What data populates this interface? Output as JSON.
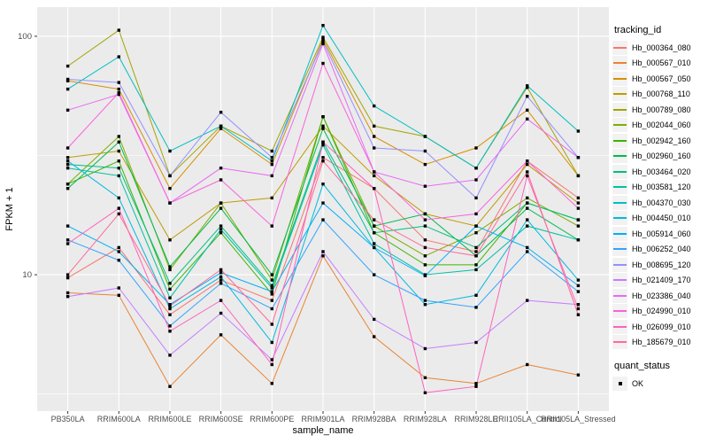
{
  "style": {
    "panel_bg": "#EBEBEB",
    "grid_major": "#FFFFFF",
    "grid_minor": "#FFFFFF",
    "tick_color": "#333333",
    "tick_label_color": "#4D4D4D",
    "axis_title_color": "#000000",
    "point_color": "#000000"
  },
  "legend": {
    "tracking_id_title": "tracking_id",
    "quant_status_title": "quant_status",
    "quant_status_items": [
      "OK"
    ]
  },
  "chart_data": {
    "type": "line",
    "title": "",
    "xlabel": "sample_name",
    "ylabel": "FPKM + 1",
    "y_scale": "log10",
    "y_ticks": [
      100,
      10
    ],
    "y_minor_ticks": [
      31.62,
      3.162
    ],
    "grid": true,
    "legend_position": "right",
    "point_shape": "filled-black-square (quant_status OK)",
    "categories": [
      "PB350LA",
      "RRIM600LA",
      "RRIM600LE",
      "RRIM600SE",
      "RRIM600PE",
      "RRIM901LA",
      "RRIM928BA",
      "RRIM928LA",
      "RRIM928LE",
      "RRII105LA_Control",
      "RRII105LA_Stressed"
    ],
    "series": [
      {
        "name": "Hb_000364_080",
        "color": "#F8766D",
        "values": [
          9.7,
          13,
          6.8,
          9.5,
          7.8,
          31,
          23,
          14,
          12.5,
          30,
          21
        ]
      },
      {
        "name": "Hb_000567_010",
        "color": "#EA8331",
        "values": [
          8.4,
          8.2,
          3.4,
          5.6,
          3.5,
          12,
          5.5,
          3.7,
          3.5,
          4.2,
          3.8
        ]
      },
      {
        "name": "Hb_000567_050",
        "color": "#D89000",
        "values": [
          65,
          60,
          23,
          41,
          29,
          97,
          38,
          29,
          34,
          49,
          26
        ]
      },
      {
        "name": "Hb_000768_110",
        "color": "#C09B00",
        "values": [
          31,
          33,
          14,
          20,
          21,
          42,
          26,
          18,
          16,
          29,
          20
        ]
      },
      {
        "name": "Hb_000789_080",
        "color": "#A3A500",
        "values": [
          75,
          106,
          26,
          42,
          33,
          99,
          42,
          38,
          28,
          61,
          26
        ]
      },
      {
        "name": "Hb_002044_060",
        "color": "#7CAE00",
        "values": [
          24,
          38,
          10.5,
          20,
          9.5,
          46,
          16,
          12,
          15,
          21,
          16
        ]
      },
      {
        "name": "Hb_002942_160",
        "color": "#39B600",
        "values": [
          24,
          30,
          8.7,
          15,
          8.3,
          46,
          15,
          11,
          11,
          20,
          17
        ]
      },
      {
        "name": "Hb_002960_160",
        "color": "#00BB4E",
        "values": [
          23,
          36,
          10.8,
          19,
          10,
          41,
          16,
          18,
          12,
          19,
          14
        ]
      },
      {
        "name": "Hb_003464_020",
        "color": "#00BF7D",
        "values": [
          29,
          28,
          9.2,
          16,
          9,
          36,
          15,
          16,
          13,
          20,
          17
        ]
      },
      {
        "name": "Hb_003581_120",
        "color": "#00C1A3",
        "values": [
          28,
          26,
          8,
          15.5,
          8.8,
          35,
          13.5,
          10,
          10.5,
          16,
          14
        ]
      },
      {
        "name": "Hb_004370_030",
        "color": "#00BFC4",
        "values": [
          60,
          82,
          33,
          42,
          30,
          111,
          51,
          38,
          28,
          62,
          40
        ]
      },
      {
        "name": "Hb_004450_010",
        "color": "#00BAE0",
        "values": [
          30,
          21,
          7.2,
          9.8,
          5.2,
          24,
          13,
          7.5,
          8.2,
          17,
          9.5
        ]
      },
      {
        "name": "Hb_005914_060",
        "color": "#00B0F6",
        "values": [
          16,
          12.5,
          7.5,
          10.2,
          8.5,
          20,
          13,
          9.9,
          16,
          13,
          9
        ]
      },
      {
        "name": "Hb_006252_040",
        "color": "#35A2FF",
        "values": [
          14,
          11.5,
          6.1,
          9.2,
          7.2,
          17,
          10,
          7.8,
          7.3,
          12.5,
          8.5
        ]
      },
      {
        "name": "Hb_008695_120",
        "color": "#9590FF",
        "values": [
          66,
          64,
          26,
          48,
          31,
          95,
          34,
          33,
          21,
          56,
          31
        ]
      },
      {
        "name": "Hb_021409_170",
        "color": "#C77CFF",
        "values": [
          8.1,
          8.8,
          4.6,
          6.9,
          4.4,
          12.5,
          6.5,
          4.9,
          5.2,
          7.8,
          7.5
        ]
      },
      {
        "name": "Hb_023386_040",
        "color": "#E76BF3",
        "values": [
          49,
          57,
          20,
          28,
          26,
          93,
          27,
          23.5,
          25,
          45,
          31
        ]
      },
      {
        "name": "Hb_024990_010",
        "color": "#FA62DB",
        "values": [
          34,
          58,
          20,
          25,
          16,
          77,
          27,
          17,
          18,
          30,
          19
        ]
      },
      {
        "name": "Hb_026099_010",
        "color": "#FF62BC",
        "values": [
          13.5,
          19,
          5.8,
          7.8,
          4.2,
          36,
          23,
          3.2,
          3.4,
          26,
          7.2
        ]
      },
      {
        "name": "Hb_185679_010",
        "color": "#FF6A98",
        "values": [
          10,
          18,
          7.4,
          10.5,
          6.2,
          30,
          17,
          13,
          12,
          27,
          6.8
        ]
      }
    ]
  }
}
